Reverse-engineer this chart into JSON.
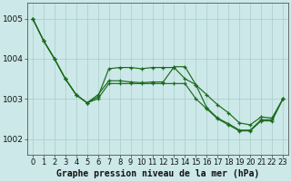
{
  "title": "Graphe pression niveau de la mer (hPa)",
  "background_color": "#cce8e8",
  "grid_color": "#aacccc",
  "line_color": "#1a6b1a",
  "xlim": [
    -0.5,
    23.5
  ],
  "ylim": [
    1001.6,
    1005.4
  ],
  "yticks": [
    1002,
    1003,
    1004,
    1005
  ],
  "xticks": [
    0,
    1,
    2,
    3,
    4,
    5,
    6,
    7,
    8,
    9,
    10,
    11,
    12,
    13,
    14,
    15,
    16,
    17,
    18,
    19,
    20,
    21,
    22,
    23
  ],
  "series1": [
    1005.0,
    1004.45,
    1004.0,
    1003.5,
    1003.1,
    1002.9,
    1003.05,
    1003.75,
    1003.78,
    1003.78,
    1003.75,
    1003.78,
    1003.78,
    1003.78,
    1003.5,
    1003.35,
    1003.1,
    1002.85,
    1002.65,
    1002.4,
    1002.35,
    1002.55,
    1002.52,
    1003.0
  ],
  "series2": [
    1005.0,
    1004.45,
    1004.0,
    1003.5,
    1003.1,
    1002.9,
    1003.1,
    1003.45,
    1003.45,
    1003.42,
    1003.4,
    1003.42,
    1003.42,
    1003.8,
    1003.8,
    1003.35,
    1002.78,
    1002.52,
    1002.38,
    1002.22,
    1002.22,
    1002.48,
    1002.48,
    1003.0
  ],
  "series3": [
    1005.0,
    1004.45,
    1004.0,
    1003.5,
    1003.1,
    1002.9,
    1003.0,
    1003.38,
    1003.38,
    1003.38,
    1003.38,
    1003.38,
    1003.38,
    1003.38,
    1003.38,
    1003.0,
    1002.75,
    1002.5,
    1002.35,
    1002.2,
    1002.2,
    1002.45,
    1002.45,
    1003.0
  ],
  "xlabel_fontsize": 7.0,
  "ylabel_fontsize": 6.5,
  "tick_fontsize": 6.0
}
